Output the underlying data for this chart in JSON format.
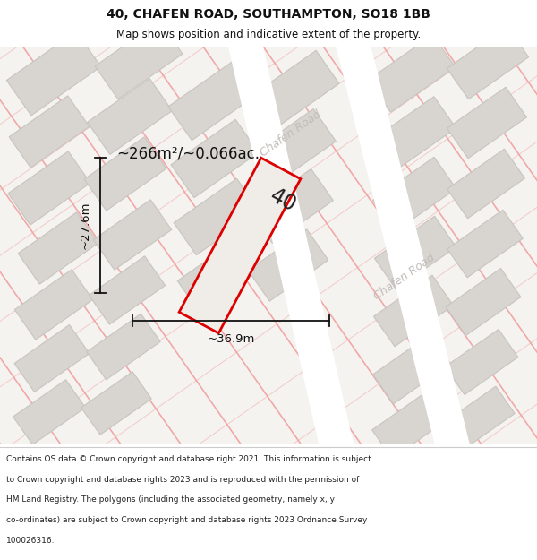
{
  "title_line1": "40, CHAFEN ROAD, SOUTHAMPTON, SO18 1BB",
  "title_line2": "Map shows position and indicative extent of the property.",
  "area_label": "~266m²/~0.066ac.",
  "width_label": "~36.9m",
  "height_label": "~27.6m",
  "plot_number": "40",
  "road_label": "Chafen Road",
  "bg_color": "#f5f3f0",
  "road_color": "#ffffff",
  "road_edge_color": "#e0ddd8",
  "plot_fill": "#f0ede8",
  "plot_stroke": "#dd0000",
  "building_fill": "#d8d5d0",
  "building_stroke": "#c8c5c0",
  "pink_line_color": "#f0a0a0",
  "title_bg": "#ffffff",
  "footer_bg": "#ffffff",
  "road_text_color": "#c0bcb8",
  "dim_color": "#111111",
  "footer_lines": [
    "Contains OS data © Crown copyright and database right 2021. This information is subject",
    "to Crown copyright and database rights 2023 and is reproduced with the permission of",
    "HM Land Registry. The polygons (including the associated geometry, namely x, y",
    "co-ordinates) are subject to Crown copyright and database rights 2023 Ordnance Survey",
    "100026316."
  ]
}
